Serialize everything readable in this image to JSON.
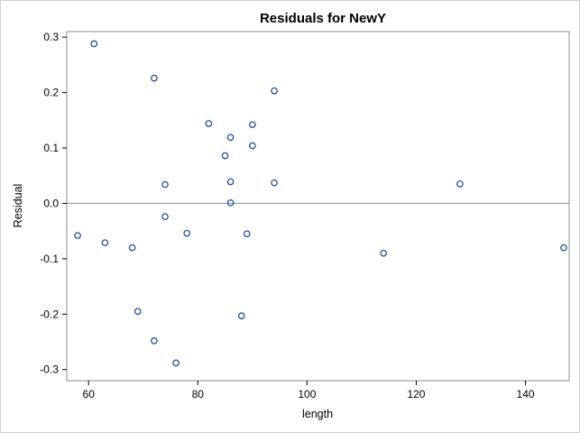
{
  "chart_data": {
    "type": "scatter",
    "title": "Residuals for NewY",
    "xlabel": "length",
    "ylabel": "Residual",
    "xlim": [
      56,
      148
    ],
    "ylim": [
      -0.32,
      0.31
    ],
    "x_ticks": [
      60,
      80,
      100,
      120,
      140
    ],
    "x_tick_labels": [
      "60",
      "80",
      "100",
      "120",
      "140"
    ],
    "y_ticks": [
      0.3,
      0.2,
      0.1,
      0.0,
      -0.1,
      -0.2,
      -0.3
    ],
    "y_tick_labels": [
      "0.3",
      "0.2",
      "0.1",
      "0.0",
      "-0.1",
      "-0.2",
      "-0.3"
    ],
    "reference_line_y": 0,
    "grid": false,
    "marker_color": "#1f4e9a",
    "reference_line_color": "#8c8c8c",
    "points": [
      {
        "x": 58,
        "y": -0.058
      },
      {
        "x": 61,
        "y": 0.288
      },
      {
        "x": 63,
        "y": -0.071
      },
      {
        "x": 68,
        "y": -0.08
      },
      {
        "x": 69,
        "y": -0.195
      },
      {
        "x": 72,
        "y": 0.226
      },
      {
        "x": 72,
        "y": -0.248
      },
      {
        "x": 74,
        "y": 0.034
      },
      {
        "x": 74,
        "y": -0.024
      },
      {
        "x": 76,
        "y": -0.288
      },
      {
        "x": 78,
        "y": -0.054
      },
      {
        "x": 82,
        "y": 0.144
      },
      {
        "x": 85,
        "y": 0.086
      },
      {
        "x": 86,
        "y": 0.119
      },
      {
        "x": 86,
        "y": 0.039
      },
      {
        "x": 86,
        "y": 0.001
      },
      {
        "x": 88,
        "y": -0.203
      },
      {
        "x": 89,
        "y": -0.055
      },
      {
        "x": 90,
        "y": 0.142
      },
      {
        "x": 90,
        "y": 0.104
      },
      {
        "x": 94,
        "y": 0.203
      },
      {
        "x": 94,
        "y": 0.037
      },
      {
        "x": 114,
        "y": -0.09
      },
      {
        "x": 128,
        "y": 0.035
      },
      {
        "x": 147,
        "y": -0.08
      }
    ]
  }
}
